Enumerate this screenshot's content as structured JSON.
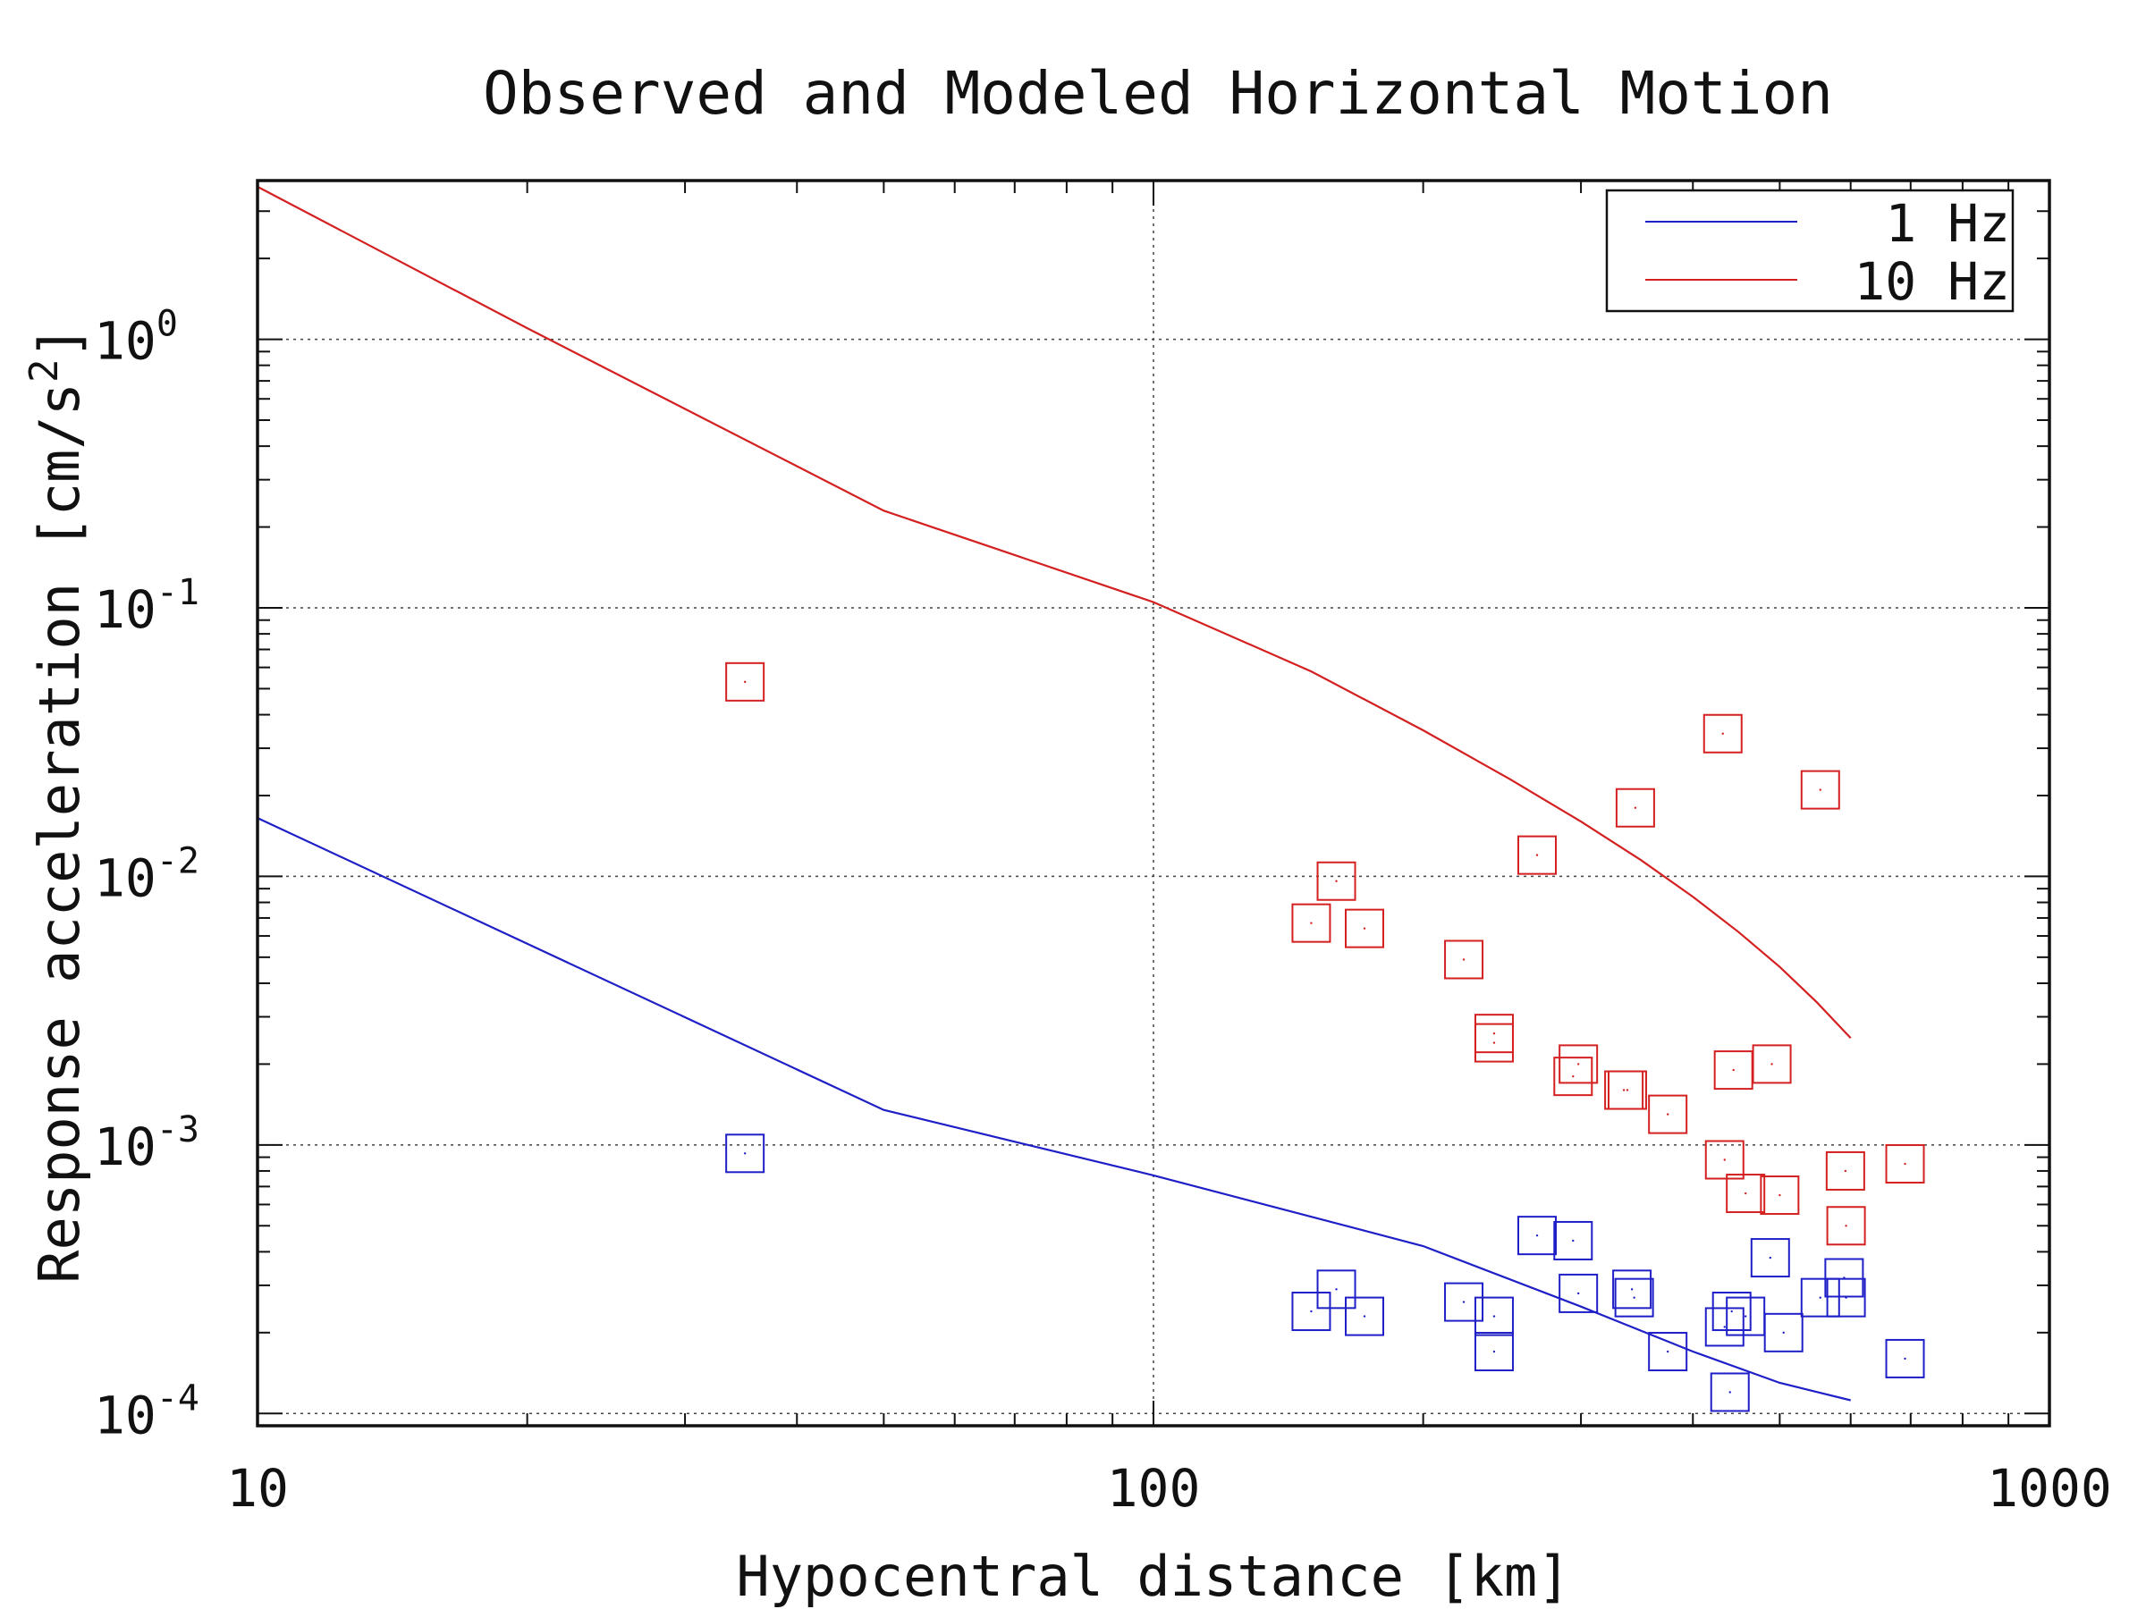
{
  "chart_data": {
    "type": "scatter",
    "title": "Observed and Modeled Horizontal Motion",
    "xlabel": "Hypocentral distance [km]",
    "ylabel_main": "Response acceleration [cm/s",
    "ylabel_sup": "2",
    "ylabel_end": "]",
    "xscale": "log",
    "yscale": "log",
    "xlim": [
      10,
      1000
    ],
    "ylim": [
      9e-05,
      3.9
    ],
    "x_ticks": [
      {
        "value": 10,
        "label": "10"
      },
      {
        "value": 100,
        "label": "100"
      },
      {
        "value": 1000,
        "label": "1000"
      }
    ],
    "y_ticks": [
      {
        "value": 1,
        "base": "10",
        "exp": "0"
      },
      {
        "value": 0.1,
        "base": "10",
        "exp": "-1"
      },
      {
        "value": 0.01,
        "base": "10",
        "exp": "-2"
      },
      {
        "value": 0.001,
        "base": "10",
        "exp": "-3"
      },
      {
        "value": 0.0001,
        "base": "10",
        "exp": "-4"
      }
    ],
    "grid": "dotted",
    "legend_position": "top-right",
    "series": [
      {
        "name": "1 Hz",
        "color": "#1f1fc8",
        "model_line": {
          "x": [
            10,
            50,
            100,
            200,
            300,
            400,
            500,
            600
          ],
          "y": [
            0.0165,
            0.00135,
            0.00077,
            0.00042,
            0.00025,
            0.00017,
            0.00013,
            0.000112
          ]
        },
        "observed": {
          "x": [
            35,
            150,
            160,
            172,
            222,
            240,
            240,
            268,
            294,
            298,
            342,
            344,
            375,
            434,
            440,
            442,
            458,
            488,
            505,
            555,
            590,
            593,
            690
          ],
          "y": [
            0.00093,
            0.00024,
            0.00029,
            0.00023,
            0.00026,
            0.00023,
            0.00017,
            0.00046,
            0.00044,
            0.00028,
            0.00029,
            0.00027,
            0.00017,
            0.00021,
            0.00012,
            0.00024,
            0.00023,
            0.00038,
            0.0002,
            0.00027,
            0.00032,
            0.00027,
            0.00016
          ]
        }
      },
      {
        "name": "10 Hz",
        "color": "#d42020",
        "model_line": {
          "x": [
            10,
            20,
            50,
            100,
            150,
            200,
            250,
            300,
            350,
            400,
            450,
            500,
            550,
            600
          ],
          "y": [
            3.7,
            1.1,
            0.23,
            0.105,
            0.058,
            0.035,
            0.023,
            0.016,
            0.0115,
            0.0084,
            0.0062,
            0.0046,
            0.0034,
            0.0025
          ]
        },
        "observed": {
          "x": [
            35,
            150,
            160,
            172,
            222,
            240,
            240,
            268,
            294,
            298,
            335,
            338,
            345,
            375,
            432,
            434,
            444,
            458,
            490,
            500,
            555,
            592,
            593,
            690
          ],
          "y": [
            0.053,
            0.0067,
            0.0096,
            0.0064,
            0.0049,
            0.0026,
            0.0024,
            0.012,
            0.0018,
            0.002,
            0.0016,
            0.0016,
            0.018,
            0.0013,
            0.034,
            0.00088,
            0.0019,
            0.00066,
            0.002,
            0.00065,
            0.021,
            0.0008,
            0.0005,
            0.00085
          ]
        }
      }
    ]
  }
}
